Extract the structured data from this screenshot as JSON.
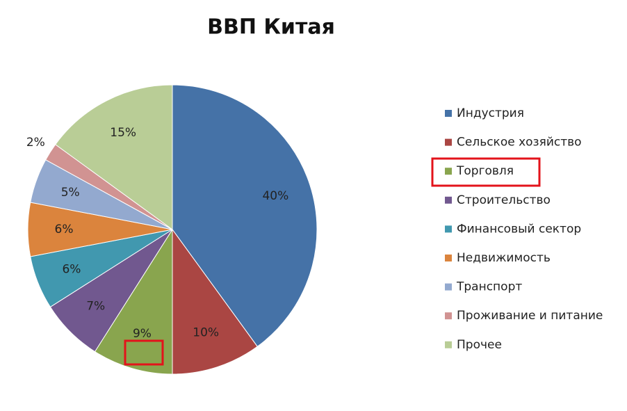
{
  "chart_data": {
    "type": "pie",
    "title": "ВВП Китая",
    "categories": [
      "Индустрия",
      "Сельское хозяйство",
      "Торговля",
      "Строительство",
      "Финансовый сектор",
      "Недвижимость",
      "Транспорт",
      "Проживание и питание",
      "Прочее"
    ],
    "values": [
      40,
      10,
      9,
      7,
      6,
      6,
      5,
      2,
      15
    ],
    "value_labels": [
      "40%",
      "10%",
      "9%",
      "7%",
      "6%",
      "6%",
      "5%",
      "2%",
      "15%"
    ],
    "colors": [
      "#4572a7",
      "#aa4643",
      "#89a54e",
      "#71588f",
      "#4198af",
      "#db843d",
      "#93a9cf",
      "#d19392",
      "#b9cd96"
    ],
    "legend": "right"
  }
}
